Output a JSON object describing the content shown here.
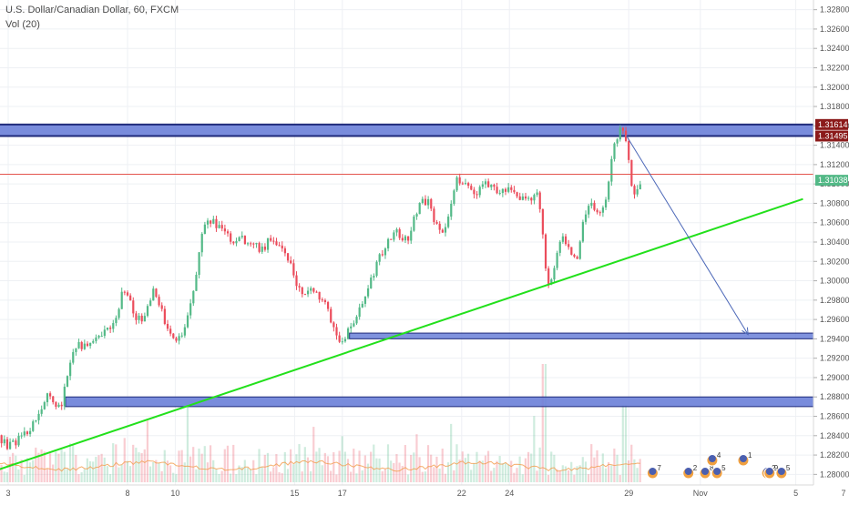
{
  "header": {
    "title": "U.S. Dollar/Canadian Dollar, 60, FXCM",
    "vol_label": "Vol (20)"
  },
  "colors": {
    "up": "#53b987",
    "down": "#eb4d5c",
    "zone_fill": "#6a80d8",
    "zone_border": "#1f2a7a",
    "trendline": "#22e01b",
    "projection": "#4c68b8",
    "resistance_line": "#e4554d",
    "grid": "#eef0f4",
    "price_tag_dark": "#8b1a1a",
    "price_tag_current": "#53b987",
    "vol_ma": "#f29b4a"
  },
  "chart_data": {
    "type": "candlestick",
    "title": "U.S. Dollar/Canadian Dollar, 60, FXCM",
    "indicator": "Vol (20)",
    "ylim": [
      1.279,
      1.329
    ],
    "y_ticks": [
      "1.32800",
      "1.32600",
      "1.32400",
      "1.32200",
      "1.32000",
      "1.31800",
      "1.31600",
      "1.31400",
      "1.31200",
      "1.31000",
      "1.30800",
      "1.30600",
      "1.30400",
      "1.30200",
      "1.30000",
      "1.29800",
      "1.29600",
      "1.29400",
      "1.29200",
      "1.29000",
      "1.28800",
      "1.28600",
      "1.28400",
      "1.28200",
      "1.28000"
    ],
    "x_ticks": [
      {
        "label": "3",
        "day": 3
      },
      {
        "label": "8",
        "day": 8
      },
      {
        "label": "10",
        "day": 10
      },
      {
        "label": "15",
        "day": 15
      },
      {
        "label": "17",
        "day": 17
      },
      {
        "label": "22",
        "day": 22
      },
      {
        "label": "24",
        "day": 24
      },
      {
        "label": "29",
        "day": 29
      },
      {
        "label": "Nov",
        "day": 32
      },
      {
        "label": "5",
        "day": 36
      },
      {
        "label": "7",
        "day": 38
      }
    ],
    "price_labels": [
      {
        "label": "1.31614",
        "value": 1.31614,
        "style": "dark"
      },
      {
        "label": "1.31495",
        "value": 1.31495,
        "style": "dark"
      },
      {
        "label": "1.31038",
        "value": 1.31038,
        "style": "current"
      }
    ],
    "price_path": [
      [
        2.0,
        1.283
      ],
      [
        2.5,
        1.2842
      ],
      [
        3.0,
        1.2828
      ],
      [
        3.5,
        1.2838
      ],
      [
        4.0,
        1.285
      ],
      [
        4.3,
        1.2865
      ],
      [
        4.6,
        1.288
      ],
      [
        4.9,
        1.2876
      ],
      [
        5.2,
        1.2868
      ],
      [
        5.5,
        1.2905
      ],
      [
        5.8,
        1.2935
      ],
      [
        6.1,
        1.293
      ],
      [
        6.5,
        1.2938
      ],
      [
        7.0,
        1.2945
      ],
      [
        7.4,
        1.2952
      ],
      [
        7.8,
        1.299
      ],
      [
        8.1,
        1.298
      ],
      [
        8.3,
        1.2956
      ],
      [
        8.6,
        1.2962
      ],
      [
        8.9,
        1.2972
      ],
      [
        9.1,
        1.2995
      ],
      [
        9.4,
        1.297
      ],
      [
        9.7,
        1.2945
      ],
      [
        10.0,
        1.2942
      ],
      [
        10.2,
        1.294
      ],
      [
        10.5,
        1.296
      ],
      [
        10.8,
        1.299
      ],
      [
        11.1,
        1.305
      ],
      [
        11.4,
        1.3064
      ],
      [
        11.8,
        1.3055
      ],
      [
        12.1,
        1.305
      ],
      [
        12.4,
        1.304
      ],
      [
        12.7,
        1.3048
      ],
      [
        13.0,
        1.3035
      ],
      [
        13.3,
        1.304
      ],
      [
        13.6,
        1.303
      ],
      [
        14.0,
        1.3045
      ],
      [
        14.4,
        1.3038
      ],
      [
        14.8,
        1.302
      ],
      [
        15.1,
        1.2995
      ],
      [
        15.4,
        1.2985
      ],
      [
        15.8,
        1.2992
      ],
      [
        16.2,
        1.298
      ],
      [
        16.6,
        1.2955
      ],
      [
        16.9,
        1.2935
      ],
      [
        17.2,
        1.2945
      ],
      [
        17.6,
        1.296
      ],
      [
        18.0,
        1.299
      ],
      [
        18.5,
        1.302
      ],
      [
        18.9,
        1.304
      ],
      [
        19.3,
        1.305
      ],
      [
        19.7,
        1.304
      ],
      [
        20.0,
        1.3065
      ],
      [
        20.3,
        1.3085
      ],
      [
        20.6,
        1.308
      ],
      [
        20.9,
        1.306
      ],
      [
        21.2,
        1.3046
      ],
      [
        21.5,
        1.307
      ],
      [
        21.8,
        1.3105
      ],
      [
        22.2,
        1.31
      ],
      [
        22.6,
        1.309
      ],
      [
        23.0,
        1.3105
      ],
      [
        23.4,
        1.3092
      ],
      [
        23.8,
        1.3096
      ],
      [
        24.2,
        1.3088
      ],
      [
        24.5,
        1.3085
      ],
      [
        24.9,
        1.3082
      ],
      [
        25.2,
        1.309
      ],
      [
        25.4,
        1.305
      ],
      [
        25.6,
        1.2993
      ],
      [
        25.9,
        1.3015
      ],
      [
        26.2,
        1.305
      ],
      [
        26.5,
        1.303
      ],
      [
        26.8,
        1.302
      ],
      [
        27.1,
        1.306
      ],
      [
        27.4,
        1.308
      ],
      [
        27.7,
        1.307
      ],
      [
        28.0,
        1.308
      ],
      [
        28.2,
        1.311
      ],
      [
        28.4,
        1.314
      ],
      [
        28.6,
        1.3155
      ],
      [
        28.9,
        1.3148
      ],
      [
        29.1,
        1.31
      ],
      [
        29.3,
        1.309
      ],
      [
        29.5,
        1.3104
      ]
    ],
    "annotations": {
      "resistance_zone": {
        "from": 1.31495,
        "to": 1.31614,
        "x_from": 0,
        "x_to": 45
      },
      "resistance_line": {
        "value": 1.311,
        "x_from": 0,
        "x_to": 36.8
      },
      "support_zone_mid": {
        "from": 1.2941,
        "to": 1.2945,
        "x_from": 17.3,
        "x_to": 45
      },
      "support_zone_low": {
        "from": 1.287,
        "to": 1.288,
        "x_from": 5.4,
        "x_to": 38.4
      },
      "trendline": {
        "points": [
          [
            2.0,
            1.28
          ],
          [
            36.3,
            1.30845
          ]
        ]
      },
      "projection": {
        "points": [
          [
            28.9,
            1.315
          ],
          [
            34.0,
            1.29445
          ]
        ],
        "arrow": true
      }
    },
    "volume": {
      "events": [
        {
          "day": 30.0,
          "count": "7"
        },
        {
          "day": 31.5,
          "count": "2"
        },
        {
          "day": 32.2,
          "count": "8"
        },
        {
          "day": 32.5,
          "count": "4"
        },
        {
          "day": 32.7,
          "count": "5"
        },
        {
          "day": 33.8,
          "count": "1"
        },
        {
          "day": 34.8,
          "count": "2"
        },
        {
          "day": 34.9,
          "count": "9"
        },
        {
          "day": 35.4,
          "count": "5"
        }
      ]
    },
    "grid": true
  }
}
